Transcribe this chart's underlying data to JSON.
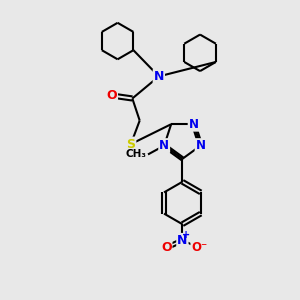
{
  "bg_color": "#e8e8e8",
  "atom_colors": {
    "C": "#000000",
    "N": "#0000ee",
    "O": "#ee0000",
    "S": "#cccc00",
    "H": "#000000"
  },
  "bond_color": "#000000",
  "bond_width": 1.5
}
